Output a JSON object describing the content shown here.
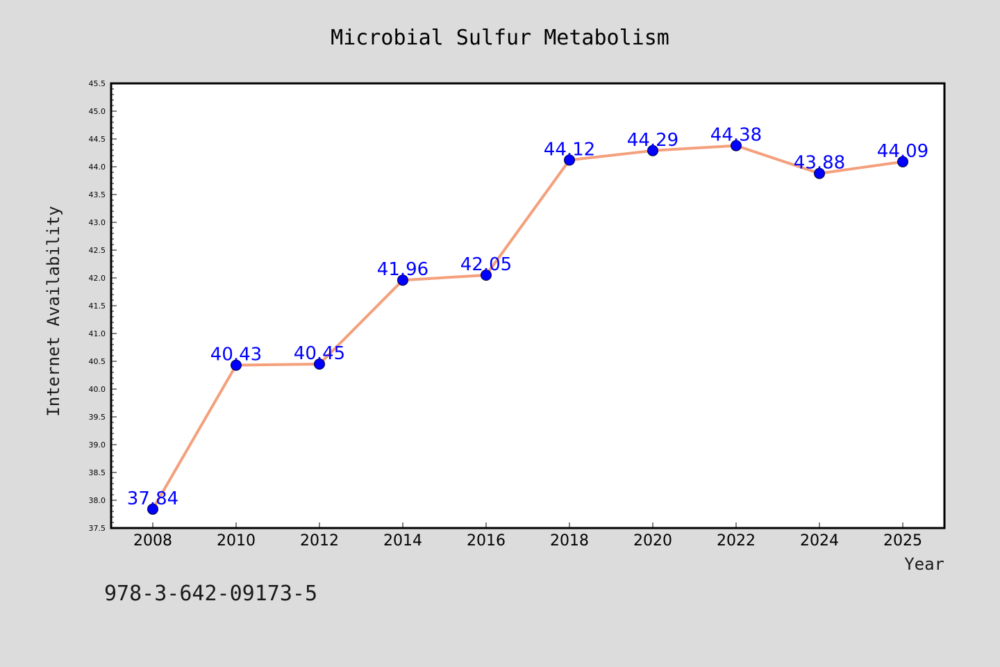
{
  "chart_data": {
    "type": "line",
    "title": "Microbial Sulfur Metabolism",
    "xlabel": "Year",
    "ylabel": "Internet Availability",
    "categories": [
      "2008",
      "2010",
      "2012",
      "2014",
      "2016",
      "2018",
      "2020",
      "2022",
      "2024",
      "2025"
    ],
    "values": [
      37.84,
      40.43,
      40.45,
      41.96,
      42.05,
      44.12,
      44.29,
      44.38,
      43.88,
      44.09
    ],
    "data_labels": [
      "37.84",
      "40.43",
      "40.45",
      "41.96",
      "42.05",
      "44.12",
      "44.29",
      "44.38",
      "43.88",
      "44.09"
    ],
    "ylim": [
      37.5,
      45.5
    ],
    "yticks": [
      "37.5",
      "38.0",
      "38.5",
      "39.0",
      "39.5",
      "40.0",
      "40.5",
      "41.0",
      "41.5",
      "42.0",
      "42.5",
      "43.0",
      "43.5",
      "44.0",
      "44.5",
      "45.0",
      "45.5"
    ],
    "grid": false,
    "legend": "none",
    "colors": {
      "line": "#f4a07c",
      "marker": "#0000ff",
      "label": "#0000ff",
      "plot_background": "#ffffff",
      "figure_background": "#dcdcdc"
    }
  },
  "annotation": {
    "isbn": "978-3-642-09173-5"
  }
}
